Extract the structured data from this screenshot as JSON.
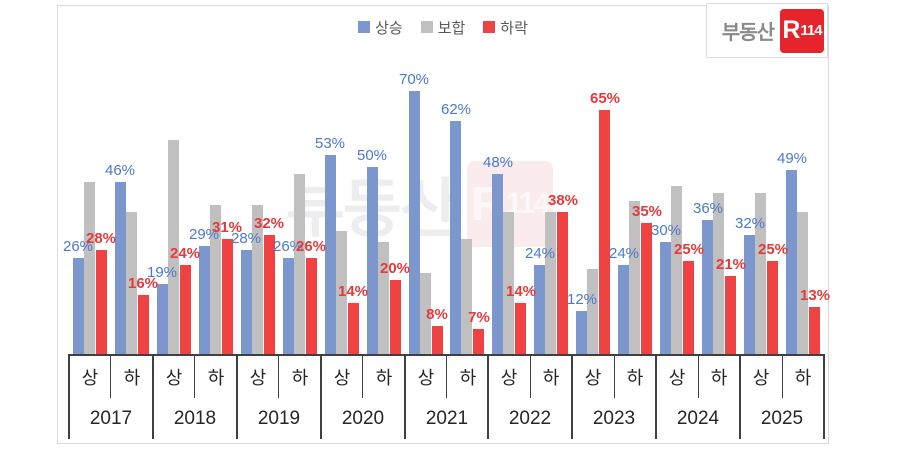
{
  "legend": {
    "items": [
      {
        "label": "상승",
        "color": "#7c96ce"
      },
      {
        "label": "보합",
        "color": "#c0c0c0"
      },
      {
        "label": "하락",
        "color": "#ee4243"
      }
    ]
  },
  "logo": {
    "prefix": "부동산",
    "box_r": "R",
    "box_n": "114"
  },
  "watermark": {
    "prefix": "부동산",
    "box_r": "R",
    "box_n": "114"
  },
  "colors": {
    "bar_rise": "#7c96ce",
    "bar_flat": "#c0c0c0",
    "bar_fall": "#ee4243",
    "label_rise": "#4d79c8",
    "label_fall": "#e23b3c",
    "axis_line": "#404040"
  },
  "chart_data": {
    "type": "bar",
    "title": "",
    "series_names": [
      "상승",
      "보합",
      "하락"
    ],
    "half_axis_labels": [
      "상",
      "하"
    ],
    "value_suffix": "%",
    "ylim": [
      0,
      70
    ],
    "labels_shown_for": [
      "상승",
      "하락"
    ],
    "groups": [
      {
        "year": "2017",
        "halves": [
          {
            "half": "상",
            "rise": 26,
            "flat": 46,
            "fall": 28
          },
          {
            "half": "하",
            "rise": 46,
            "flat": 38,
            "fall": 16
          }
        ]
      },
      {
        "year": "2018",
        "halves": [
          {
            "half": "상",
            "rise": 19,
            "flat": 57,
            "fall": 24
          },
          {
            "half": "하",
            "rise": 29,
            "flat": 40,
            "fall": 31
          }
        ]
      },
      {
        "year": "2019",
        "halves": [
          {
            "half": "상",
            "rise": 28,
            "flat": 40,
            "fall": 32
          },
          {
            "half": "하",
            "rise": 26,
            "flat": 48,
            "fall": 26
          }
        ]
      },
      {
        "year": "2020",
        "halves": [
          {
            "half": "상",
            "rise": 53,
            "flat": 33,
            "fall": 14
          },
          {
            "half": "하",
            "rise": 50,
            "flat": 30,
            "fall": 20
          }
        ]
      },
      {
        "year": "2021",
        "halves": [
          {
            "half": "상",
            "rise": 70,
            "flat": 22,
            "fall": 8
          },
          {
            "half": "하",
            "rise": 62,
            "flat": 31,
            "fall": 7
          }
        ]
      },
      {
        "year": "2022",
        "halves": [
          {
            "half": "상",
            "rise": 48,
            "flat": 38,
            "fall": 14
          },
          {
            "half": "하",
            "rise": 24,
            "flat": 38,
            "fall": 38
          }
        ]
      },
      {
        "year": "2023",
        "halves": [
          {
            "half": "상",
            "rise": 12,
            "flat": 23,
            "fall": 65
          },
          {
            "half": "하",
            "rise": 24,
            "flat": 41,
            "fall": 35
          }
        ]
      },
      {
        "year": "2024",
        "halves": [
          {
            "half": "상",
            "rise": 30,
            "flat": 45,
            "fall": 25
          },
          {
            "half": "하",
            "rise": 36,
            "flat": 43,
            "fall": 21
          }
        ]
      },
      {
        "year": "2025",
        "halves": [
          {
            "half": "상",
            "rise": 32,
            "flat": 43,
            "fall": 25
          },
          {
            "half": "하",
            "rise": 49,
            "flat": 38,
            "fall": 13
          }
        ]
      }
    ]
  }
}
